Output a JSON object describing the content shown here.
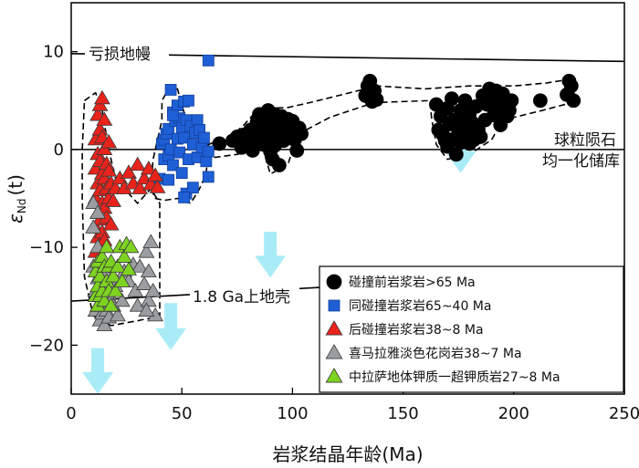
{
  "chart_data": {
    "type": "scatter",
    "xlabel": "岩浆结晶年龄(Ma)",
    "ylabel": "εNd(t)",
    "ylabel_main": "ε",
    "ylabel_sub": "Nd",
    "ylabel_tail": "(t)",
    "xlim": [
      0,
      250
    ],
    "ylim": [
      -25,
      15
    ],
    "xticks": [
      0,
      50,
      100,
      150,
      200,
      250
    ],
    "yticks": [
      10,
      0,
      -10,
      -20
    ],
    "grid": false,
    "legend_position": "bottom-right",
    "reference_lines": [
      {
        "name": "亏损地幔",
        "from": [
          0,
          9.8
        ],
        "to": [
          250,
          9.0
        ]
      },
      {
        "name_lines": [
          "球粒陨石",
          "均一化储库"
        ],
        "from": [
          0,
          0
        ],
        "to": [
          250,
          0
        ]
      },
      {
        "name": "1.8 Ga上地壳",
        "from": [
          0,
          -15.5
        ],
        "to": [
          128,
          -13.9
        ]
      }
    ],
    "annotations": {
      "depleted_mantle": "亏损地幔",
      "chur_line1": "球粒陨石",
      "chur_line2": "均一化储库",
      "crust": "1.8 Ga上地壳"
    },
    "arrows": [
      {
        "x": 12,
        "y_top": -20.3,
        "y_bottom": -25
      },
      {
        "x": 45,
        "y_top": -15.7,
        "y_bottom": -20.5
      },
      {
        "x": 90,
        "y_top": -8.4,
        "y_bottom": -13.1
      },
      {
        "x": 176,
        "y_top": 2.3,
        "y_bottom": -2.4
      }
    ],
    "envelopes": [
      [
        [
          6,
          5
        ],
        [
          11,
          5.8
        ],
        [
          14,
          4
        ],
        [
          17,
          0
        ],
        [
          20,
          -3
        ],
        [
          30,
          -5.5
        ],
        [
          36,
          -4
        ],
        [
          40,
          -5.5
        ],
        [
          40,
          -17
        ],
        [
          30,
          -17.5
        ],
        [
          18,
          -18
        ],
        [
          10,
          -17
        ],
        [
          6,
          -13
        ],
        [
          5,
          -5
        ],
        [
          5,
          0
        ]
      ],
      [
        [
          36,
          -4
        ],
        [
          37,
          -1
        ],
        [
          41,
          3
        ],
        [
          41,
          5
        ],
        [
          44,
          6.2
        ],
        [
          48,
          6.2
        ],
        [
          52,
          3
        ],
        [
          55,
          2
        ],
        [
          59,
          1.5
        ],
        [
          62,
          0.5
        ],
        [
          61,
          -2.5
        ],
        [
          58,
          -4
        ],
        [
          54,
          -5.5
        ],
        [
          48,
          -5
        ],
        [
          42,
          -5.2
        ],
        [
          38,
          -5
        ]
      ],
      [
        [
          62,
          0.5
        ],
        [
          73,
          1.5
        ],
        [
          78,
          2.5
        ],
        [
          82,
          3.5
        ],
        [
          88,
          4.2
        ],
        [
          98,
          4.3
        ],
        [
          108,
          4.8
        ],
        [
          133,
          6.2
        ],
        [
          138,
          6.5
        ],
        [
          160,
          6.2
        ],
        [
          180,
          6.5
        ],
        [
          200,
          6.5
        ],
        [
          215,
          6.8
        ],
        [
          226,
          7.2
        ],
        [
          228,
          4.9
        ],
        [
          213,
          4
        ],
        [
          195,
          3
        ],
        [
          190,
          1
        ],
        [
          180,
          -0.5
        ],
        [
          170,
          -1
        ],
        [
          165,
          0.5
        ],
        [
          163,
          3
        ],
        [
          162,
          5
        ],
        [
          137,
          4.8
        ],
        [
          117,
          3.3
        ],
        [
          102,
          1.5
        ],
        [
          98,
          -1.5
        ],
        [
          90,
          -2.5
        ],
        [
          88,
          -1
        ],
        [
          86,
          1
        ],
        [
          83,
          0
        ],
        [
          75,
          -0.5
        ],
        [
          65,
          -0.8
        ],
        [
          62,
          -0.5
        ]
      ]
    ],
    "series": [
      {
        "name": "碰撞前岩浆岩>65 Ma",
        "marker": "circle",
        "color": "#000000",
        "points": [
          [
            67,
            0.6
          ],
          [
            73,
            0.9
          ],
          [
            75,
            1.3
          ],
          [
            77,
            0.2
          ],
          [
            78,
            1.5
          ],
          [
            80,
            0.8
          ],
          [
            81,
            2.0
          ],
          [
            82,
            -0.1
          ],
          [
            83,
            1.2
          ],
          [
            84,
            2.8
          ],
          [
            85,
            3.6
          ],
          [
            86,
            1.5
          ],
          [
            87,
            0.5
          ],
          [
            88,
            2.6
          ],
          [
            89,
            4.0
          ],
          [
            89,
            1.0
          ],
          [
            90,
            3.0
          ],
          [
            90,
            -0.2
          ],
          [
            91,
            -1.0
          ],
          [
            91,
            2.2
          ],
          [
            92,
            3.6
          ],
          [
            92,
            0.4
          ],
          [
            93,
            1.8
          ],
          [
            94,
            2.9
          ],
          [
            94,
            -1.6
          ],
          [
            95,
            3.4
          ],
          [
            96,
            0.9
          ],
          [
            96,
            2.4
          ],
          [
            97,
            1.4
          ],
          [
            98,
            3.1
          ],
          [
            99,
            2.0
          ],
          [
            100,
            2.9
          ],
          [
            101,
            1.0
          ],
          [
            102,
            -0.1
          ],
          [
            103,
            2.2
          ],
          [
            104,
            1.6
          ],
          [
            133,
            5.5
          ],
          [
            134,
            6.5
          ],
          [
            135,
            7.0
          ],
          [
            136,
            4.9
          ],
          [
            137,
            6.0
          ],
          [
            138,
            5.1
          ],
          [
            165,
            4.6
          ],
          [
            166,
            2.0
          ],
          [
            167,
            3.4
          ],
          [
            168,
            1.5
          ],
          [
            169,
            0.9
          ],
          [
            170,
            4.2
          ],
          [
            170,
            0.3
          ],
          [
            171,
            2.6
          ],
          [
            172,
            5.2
          ],
          [
            172,
            1.0
          ],
          [
            173,
            3.0
          ],
          [
            174,
            -0.5
          ],
          [
            174,
            2.4
          ],
          [
            175,
            1.6
          ],
          [
            176,
            4.0
          ],
          [
            176,
            0.7
          ],
          [
            177,
            3.0
          ],
          [
            178,
            2.0
          ],
          [
            178,
            5.0
          ],
          [
            179,
            1.2
          ],
          [
            180,
            3.7
          ],
          [
            180,
            0.6
          ],
          [
            181,
            2.8
          ],
          [
            182,
            1.0
          ],
          [
            183,
            4.4
          ],
          [
            184,
            2.0
          ],
          [
            185,
            1.3
          ],
          [
            186,
            5.5
          ],
          [
            187,
            3.0
          ],
          [
            188,
            4.6
          ],
          [
            189,
            6.2
          ],
          [
            190,
            5.5
          ],
          [
            191,
            3.5
          ],
          [
            192,
            6.0
          ],
          [
            193,
            4.7
          ],
          [
            194,
            2.5
          ],
          [
            195,
            5.7
          ],
          [
            196,
            4.3
          ],
          [
            197,
            3.4
          ],
          [
            198,
            4.0
          ],
          [
            199,
            5.0
          ],
          [
            212,
            5.0
          ],
          [
            224,
            5.6
          ],
          [
            225,
            7.0
          ],
          [
            226,
            6.5
          ],
          [
            227,
            5.0
          ]
        ]
      },
      {
        "name": "同碰撞岩浆岩65~40 Ma",
        "marker": "square",
        "color": "#1f5fd6",
        "points": [
          [
            40,
            -3.0
          ],
          [
            41,
            0.6
          ],
          [
            42,
            1.0
          ],
          [
            42,
            -1.0
          ],
          [
            43,
            1.6
          ],
          [
            44,
            -0.6
          ],
          [
            44,
            2.1
          ],
          [
            45,
            6.1
          ],
          [
            45,
            0.0
          ],
          [
            46,
            3.8
          ],
          [
            46,
            -1.6
          ],
          [
            47,
            2.9
          ],
          [
            48,
            1.1
          ],
          [
            48,
            4.5
          ],
          [
            49,
            -0.3
          ],
          [
            49,
            3.2
          ],
          [
            50,
            2.2
          ],
          [
            50,
            -2.4
          ],
          [
            51,
            4.9
          ],
          [
            51,
            1.2
          ],
          [
            52,
            -4.5
          ],
          [
            52,
            3.0
          ],
          [
            53,
            5.0
          ],
          [
            53,
            -1.0
          ],
          [
            54,
            2.4
          ],
          [
            55,
            0.5
          ],
          [
            55,
            -3.9
          ],
          [
            56,
            1.7
          ],
          [
            57,
            3.0
          ],
          [
            57,
            -0.8
          ],
          [
            58,
            2.0
          ],
          [
            59,
            0.2
          ],
          [
            60,
            1.2
          ],
          [
            61,
            -1.2
          ],
          [
            62,
            -0.2
          ],
          [
            62,
            -2.8
          ],
          [
            62,
            9.1
          ],
          [
            51,
            -4.9
          ],
          [
            46,
            3.5
          ],
          [
            44,
            -3.1
          ]
        ]
      },
      {
        "name": "后碰撞岩浆岩38~8 Ma",
        "marker": "triangle",
        "color": "#e8231c",
        "points": [
          [
            11,
            1.0
          ],
          [
            11,
            -2.0
          ],
          [
            11,
            -5.0
          ],
          [
            11,
            -8.0
          ],
          [
            11,
            -10.5
          ],
          [
            12,
            3.5
          ],
          [
            12,
            -0.5
          ],
          [
            12,
            -3.5
          ],
          [
            12,
            -6.5
          ],
          [
            12,
            -9.0
          ],
          [
            13,
            4.5
          ],
          [
            13,
            2.0
          ],
          [
            13,
            -1.2
          ],
          [
            13,
            -4.2
          ],
          [
            13,
            -7.2
          ],
          [
            13,
            -9.8
          ],
          [
            14,
            5.2
          ],
          [
            14,
            1.2
          ],
          [
            14,
            -2.5
          ],
          [
            14,
            -5.5
          ],
          [
            14,
            -8.5
          ],
          [
            15,
            3.0
          ],
          [
            15,
            0.0
          ],
          [
            15,
            -3.0
          ],
          [
            15,
            -6.0
          ],
          [
            15,
            -9.3
          ],
          [
            16,
            -1.5
          ],
          [
            16,
            -4.0
          ],
          [
            16,
            -7.0
          ],
          [
            17,
            0.7
          ],
          [
            17,
            -2.2
          ],
          [
            17,
            -5.0
          ],
          [
            18,
            -3.5
          ],
          [
            18,
            -7.7
          ],
          [
            19,
            -5.3
          ],
          [
            20,
            -4.0
          ],
          [
            22,
            -3.0
          ],
          [
            24,
            -4.0
          ],
          [
            26,
            -2.4
          ],
          [
            28,
            -3.5
          ],
          [
            30,
            -1.6
          ],
          [
            31,
            -4.0
          ],
          [
            33,
            -3.0
          ],
          [
            35,
            -2.0
          ],
          [
            36,
            -3.6
          ],
          [
            38,
            -2.7
          ],
          [
            39,
            -3.9
          ]
        ]
      },
      {
        "name": "喜马拉雅淡色花岗岩38~7 Ma",
        "marker": "triangle",
        "color": "#9b9da0",
        "points": [
          [
            10,
            -5.5
          ],
          [
            10,
            -8.0
          ],
          [
            10,
            -12.0
          ],
          [
            11,
            -14.5
          ],
          [
            11,
            -16.5
          ],
          [
            12,
            -6.5
          ],
          [
            12,
            -10.0
          ],
          [
            12,
            -13.2
          ],
          [
            12,
            -16.0
          ],
          [
            13,
            -17.5
          ],
          [
            13,
            -11.8
          ],
          [
            14,
            -14.0
          ],
          [
            14,
            -16.8
          ],
          [
            15,
            -12.5
          ],
          [
            15,
            -15.5
          ],
          [
            15,
            -18.0
          ],
          [
            16,
            -13.8
          ],
          [
            16,
            -16.5
          ],
          [
            17,
            -14.8
          ],
          [
            17,
            -17.2
          ],
          [
            18,
            -15.5
          ],
          [
            19,
            -16.0
          ],
          [
            20,
            -14.0
          ],
          [
            21,
            -17.0
          ],
          [
            23,
            -15.5
          ],
          [
            24,
            -12.5
          ],
          [
            26,
            -13.5
          ],
          [
            28,
            -11.8
          ],
          [
            29,
            -14.5
          ],
          [
            30,
            -16.0
          ],
          [
            31,
            -12.0
          ],
          [
            33,
            -13.8
          ],
          [
            34,
            -10.5
          ],
          [
            35,
            -12.5
          ],
          [
            35,
            -15.5
          ],
          [
            36,
            -9.5
          ],
          [
            37,
            -14.5
          ],
          [
            38,
            -17.0
          ],
          [
            34,
            -16.5
          ]
        ]
      },
      {
        "name": "中拉萨地体钾质一超钾质岩27~8 Ma",
        "marker": "triangle",
        "color": "#7ed321",
        "points": [
          [
            11,
            -12.5
          ],
          [
            11,
            -15.0
          ],
          [
            12,
            -11.5
          ],
          [
            12,
            -14.0
          ],
          [
            12,
            -16.0
          ],
          [
            13,
            -13.0
          ],
          [
            13,
            -15.0
          ],
          [
            14,
            -11.0
          ],
          [
            14,
            -14.5
          ],
          [
            15,
            -12.0
          ],
          [
            15,
            -15.5
          ],
          [
            16,
            -13.5
          ],
          [
            16,
            -10.0
          ],
          [
            17,
            -14.5
          ],
          [
            17,
            -12.0
          ],
          [
            18,
            -11.5
          ],
          [
            18,
            -16.0
          ],
          [
            19,
            -13.0
          ],
          [
            20,
            -14.5
          ],
          [
            21,
            -12.0
          ],
          [
            22,
            -10.0
          ],
          [
            23,
            -13.5
          ],
          [
            24,
            -11.0
          ],
          [
            25,
            -9.7
          ],
          [
            26,
            -12.3
          ],
          [
            27,
            -10.0
          ]
        ]
      }
    ]
  }
}
